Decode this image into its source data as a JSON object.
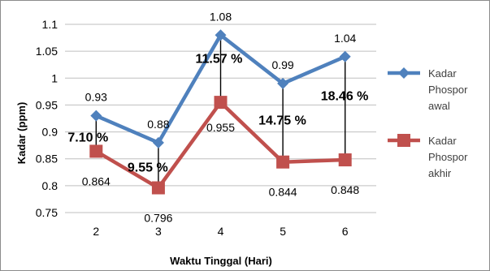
{
  "chart_data": {
    "type": "line",
    "xlabel": "Waktu Tinggal (Hari)",
    "ylabel": "Kadar (ppm)",
    "categories": [
      "2",
      "3",
      "4",
      "5",
      "6"
    ],
    "ylim": [
      0.75,
      1.1
    ],
    "yticks": [
      "0.75",
      "0.8",
      "0.85",
      "0.9",
      "0.95",
      "1",
      "1.05",
      "1.1"
    ],
    "grid": true,
    "legend_position": "right",
    "series": [
      {
        "name_lines": [
          "Kadar",
          "Phospor",
          "awal"
        ],
        "color": "#4f81bd",
        "marker": "diamond",
        "values": [
          0.93,
          0.88,
          1.08,
          0.99,
          1.04
        ],
        "labels": [
          "0.93",
          "0.88",
          "1.08",
          "0.99",
          "1.04"
        ]
      },
      {
        "name_lines": [
          "Kadar",
          "Phospor",
          "akhir"
        ],
        "color": "#c0504d",
        "marker": "square",
        "values": [
          0.864,
          0.796,
          0.955,
          0.844,
          0.848
        ],
        "labels": [
          "0.864",
          "0.796",
          "0.955",
          "0.844",
          "0.848"
        ]
      }
    ],
    "annotations": [
      "7.10 %",
      "9.55 %",
      "11.57 %",
      "14.75 %",
      "18.46 %"
    ]
  }
}
